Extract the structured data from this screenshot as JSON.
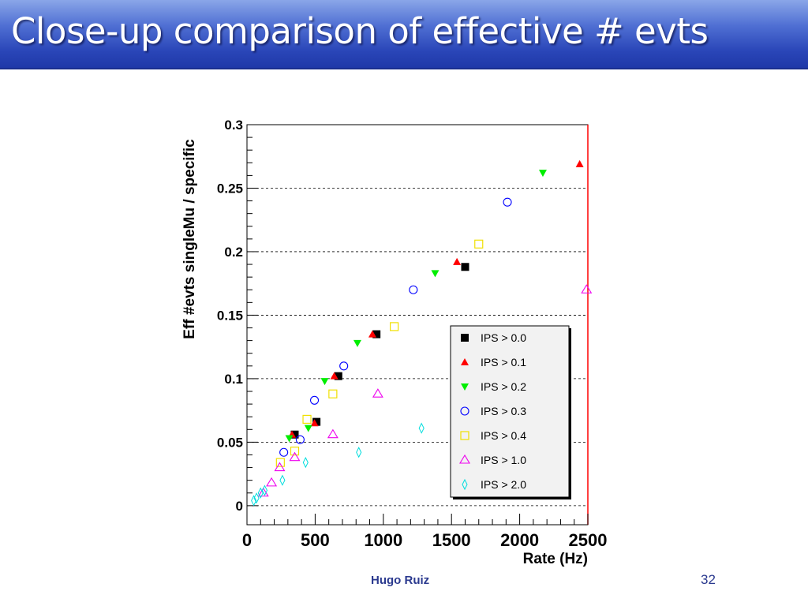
{
  "slide": {
    "title": "Close-up comparison of effective # evts",
    "author": "Hugo Ruiz",
    "page_number": "32"
  },
  "colors": {
    "title_text": "#ffffff",
    "title_bar": "#2a46b8",
    "footer_text": "#2b3a8f"
  },
  "chart_data": {
    "type": "scatter",
    "title": "",
    "xlabel": "Rate (Hz)",
    "ylabel": "Eff #evts singleMu / specific",
    "xlim": [
      0,
      2500
    ],
    "ylim": [
      -0.015,
      0.3
    ],
    "x_ticks": [
      0,
      500,
      1000,
      1500,
      2000,
      2500
    ],
    "x_tick_labels": [
      "0",
      "500",
      "1000",
      "1500",
      "2000",
      "2500"
    ],
    "y_ticks": [
      0,
      0.05,
      0.1,
      0.15,
      0.2,
      0.25,
      0.3
    ],
    "y_tick_labels": [
      "0",
      "0.05",
      "0.1",
      "0.15",
      "0.2",
      "0.25",
      "0.3"
    ],
    "grid": "horizontal dashed",
    "legend_position": "bottom-right",
    "series": [
      {
        "name": "IPS > 0.0",
        "marker": "square-filled",
        "color": "#000000",
        "points": [
          [
            350,
            0.056
          ],
          [
            510,
            0.066
          ],
          [
            670,
            0.102
          ],
          [
            950,
            0.135
          ],
          [
            1600,
            0.188
          ]
        ]
      },
      {
        "name": "IPS > 0.1",
        "marker": "triangle-up-filled",
        "color": "#ff0000",
        "points": [
          [
            330,
            0.056
          ],
          [
            495,
            0.065
          ],
          [
            640,
            0.102
          ],
          [
            920,
            0.135
          ],
          [
            1540,
            0.192
          ],
          [
            2440,
            0.269
          ]
        ]
      },
      {
        "name": "IPS > 0.2",
        "marker": "triangle-down-filled",
        "color": "#00ee00",
        "points": [
          [
            310,
            0.053
          ],
          [
            450,
            0.061
          ],
          [
            570,
            0.098
          ],
          [
            810,
            0.128
          ],
          [
            1380,
            0.183
          ],
          [
            2170,
            0.262
          ]
        ]
      },
      {
        "name": "IPS > 0.3",
        "marker": "circle-open",
        "color": "#0000ff",
        "points": [
          [
            270,
            0.042
          ],
          [
            390,
            0.052
          ],
          [
            495,
            0.083
          ],
          [
            710,
            0.11
          ],
          [
            1220,
            0.17
          ],
          [
            1910,
            0.239
          ]
        ]
      },
      {
        "name": "IPS > 0.4",
        "marker": "square-open",
        "color": "#f0e000",
        "points": [
          [
            245,
            0.034
          ],
          [
            350,
            0.043
          ],
          [
            440,
            0.068
          ],
          [
            630,
            0.088
          ],
          [
            1080,
            0.141
          ],
          [
            1700,
            0.206
          ]
        ]
      },
      {
        "name": "IPS > 1.0",
        "marker": "triangle-up-open",
        "color": "#ee00ee",
        "points": [
          [
            120,
            0.01
          ],
          [
            180,
            0.018
          ],
          [
            240,
            0.03
          ],
          [
            350,
            0.038
          ],
          [
            630,
            0.056
          ],
          [
            960,
            0.088
          ],
          [
            2490,
            0.17
          ]
        ]
      },
      {
        "name": "IPS > 2.0",
        "marker": "diamond-open",
        "color": "#00dddd",
        "points": [
          [
            50,
            0.004
          ],
          [
            70,
            0.006
          ],
          [
            100,
            0.01
          ],
          [
            130,
            0.012
          ],
          [
            260,
            0.02
          ],
          [
            430,
            0.034
          ],
          [
            820,
            0.042
          ],
          [
            1280,
            0.061
          ]
        ]
      }
    ]
  }
}
